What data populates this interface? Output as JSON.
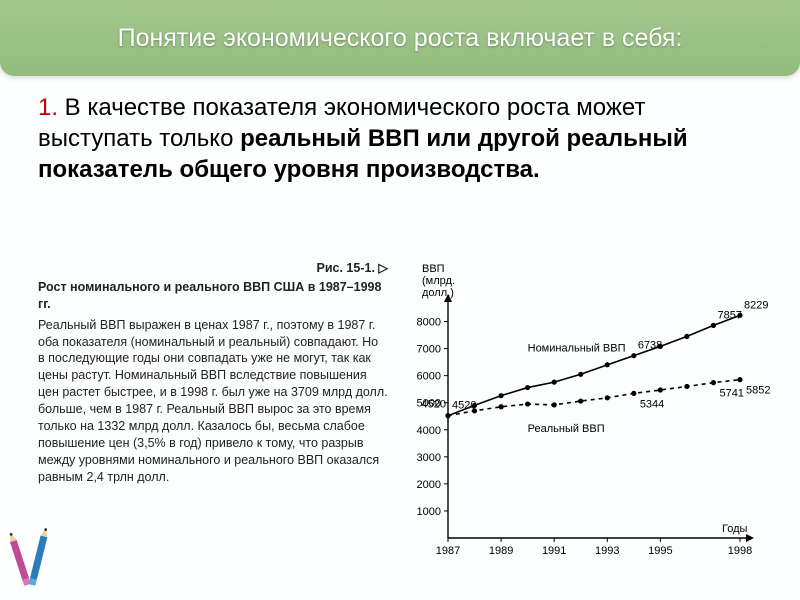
{
  "header": {
    "title": "Понятие экономического роста включает в себя:"
  },
  "body": {
    "num": "1.",
    "text_before_bold": " В качестве показателя экономического роста может выступать только ",
    "bold": "реальный ВВП или другой реальный показатель общего уровня производства."
  },
  "figure": {
    "label": "Рис. 15-1. ▷",
    "title": "Рост номинального и реального ВВП США в 1987–1998 гг.",
    "caption": "Реальный ВВП выражен в ценах 1987 г., поэтому в 1987 г. оба показателя (номинальный и реальный) совпадают. Но в последующие годы они совпадать уже не могут, так как цены растут. Номинальный ВВП вследствие повышения цен растет быстрее, и в 1998 г. был уже на 3709 млрд долл. больше, чем в 1987 г. Реальный ВВП вырос за это время только на 1332 млрд долл. Казалось бы, весьма слабое повышение цен (3,5% в год) привело к тому, что разрыв между уровнями номинального и реального ВВП оказался равным 2,4 трлн долл."
  },
  "chart": {
    "type": "line",
    "y_title": "ВВП\n(млрд.\nдолл.)",
    "x_title": "Годы",
    "ylim": [
      0,
      8500
    ],
    "ytick_step": 1000,
    "y_ticks": [
      1000,
      2000,
      3000,
      4000,
      5000,
      6000,
      7000,
      8000
    ],
    "x_ticks": [
      1987,
      1989,
      1991,
      1993,
      1995,
      1998
    ],
    "background_color": "#ffffff",
    "axis_color": "#000000",
    "series": {
      "nominal": {
        "name": "Номинальный ВВП",
        "color": "#000000",
        "dash": "none",
        "marker": "circle",
        "points": [
          {
            "x": 1987,
            "y": 4520,
            "label": "4520"
          },
          {
            "x": 1988,
            "y": 4900
          },
          {
            "x": 1989,
            "y": 5260
          },
          {
            "x": 1990,
            "y": 5560
          },
          {
            "x": 1991,
            "y": 5760
          },
          {
            "x": 1992,
            "y": 6050
          },
          {
            "x": 1993,
            "y": 6400
          },
          {
            "x": 1994,
            "y": 6738,
            "label": "6738"
          },
          {
            "x": 1995,
            "y": 7080
          },
          {
            "x": 1996,
            "y": 7450
          },
          {
            "x": 1997,
            "y": 7857,
            "label": "7857"
          },
          {
            "x": 1998,
            "y": 8229,
            "label": "8229"
          }
        ]
      },
      "real": {
        "name": "Реальный ВВП",
        "color": "#000000",
        "dash": "4 4",
        "marker": "circle",
        "points": [
          {
            "x": 1987,
            "y": 4520
          },
          {
            "x": 1988,
            "y": 4700
          },
          {
            "x": 1989,
            "y": 4850
          },
          {
            "x": 1990,
            "y": 4950
          },
          {
            "x": 1991,
            "y": 4920
          },
          {
            "x": 1992,
            "y": 5060
          },
          {
            "x": 1993,
            "y": 5180
          },
          {
            "x": 1994,
            "y": 5344,
            "label": "5344"
          },
          {
            "x": 1995,
            "y": 5470
          },
          {
            "x": 1996,
            "y": 5600
          },
          {
            "x": 1997,
            "y": 5741,
            "label": "5741"
          },
          {
            "x": 1998,
            "y": 5852,
            "label": "5852"
          }
        ]
      }
    }
  }
}
